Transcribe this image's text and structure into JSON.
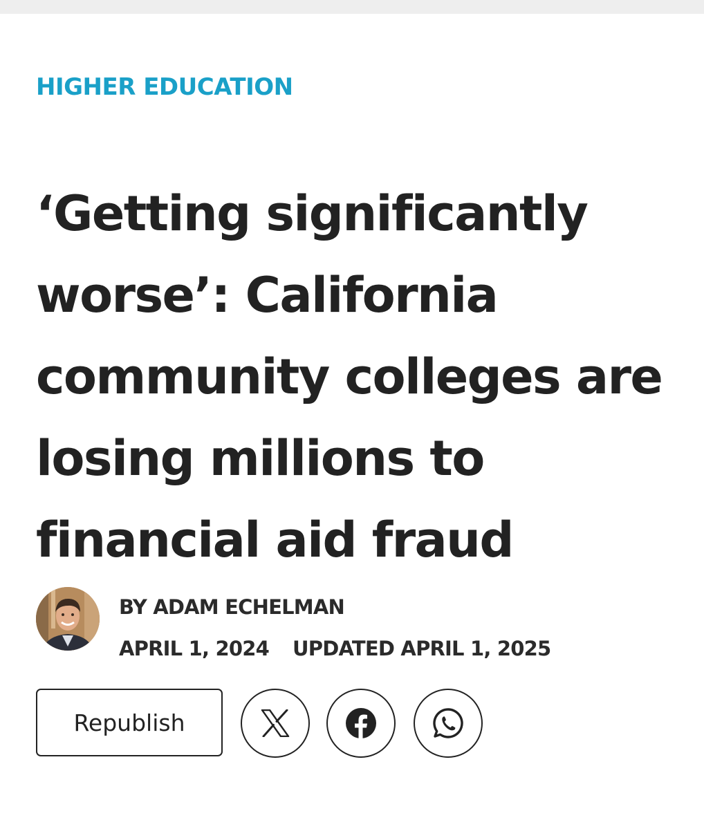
{
  "category": "HIGHER EDUCATION",
  "headline": "‘Getting significantly worse’: California community colleges are losing millions to financial aid fraud",
  "byline": {
    "author": "BY ADAM ECHELMAN",
    "published": "APRIL 1, 2024",
    "updated": "UPDATED APRIL 1, 2025"
  },
  "actions": {
    "republish_label": "Republish"
  },
  "icons": {
    "x": "x-logo-icon",
    "facebook": "facebook-icon",
    "whatsapp": "whatsapp-icon"
  },
  "colors": {
    "category": "#1aa0c8",
    "text": "#222222",
    "topbar": "#eeeeee"
  }
}
